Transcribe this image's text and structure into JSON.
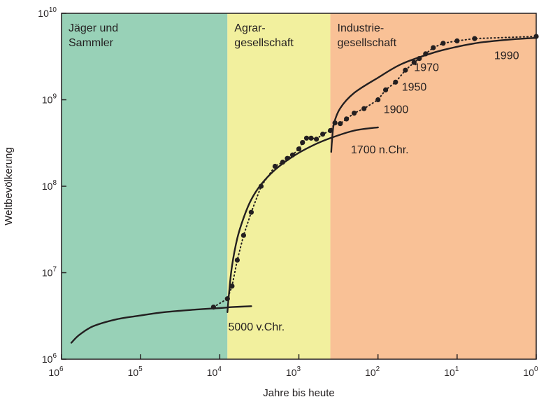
{
  "chart_data": {
    "type": "scatter",
    "x_scale": "log-reversed",
    "y_scale": "log",
    "xlabel": "Jahre bis heute",
    "ylabel": "Weltbevölkerung",
    "xlim": [
      1000000,
      1
    ],
    "ylim": [
      1000000,
      10000000000
    ],
    "x_ticks": [
      {
        "base": "10",
        "exp": "6",
        "value": 1000000
      },
      {
        "base": "10",
        "exp": "5",
        "value": 100000
      },
      {
        "base": "10",
        "exp": "4",
        "value": 10000
      },
      {
        "base": "10",
        "exp": "3",
        "value": 1000
      },
      {
        "base": "10",
        "exp": "2",
        "value": 100
      },
      {
        "base": "10",
        "exp": "1",
        "value": 10
      },
      {
        "base": "10",
        "exp": "0",
        "value": 1
      }
    ],
    "y_ticks": [
      {
        "base": "10",
        "exp": "6",
        "value": 1000000
      },
      {
        "base": "10",
        "exp": "7",
        "value": 10000000
      },
      {
        "base": "10",
        "exp": "8",
        "value": 100000000
      },
      {
        "base": "10",
        "exp": "9",
        "value": 1000000000
      },
      {
        "base": "10",
        "exp": "10",
        "value": 10000000000
      }
    ],
    "eras": [
      {
        "line1": "Jäger und",
        "line2": "Sammler",
        "from": 1000000,
        "to": 8000,
        "color": "#98d1b7"
      },
      {
        "line1": "Agrar-",
        "line2": "gesellschaft",
        "from": 8000,
        "to": 400,
        "color": "#f2f09e"
      },
      {
        "line1": "Industrie-",
        "line2": "gesellschaft",
        "from": 400,
        "to": 1,
        "color": "#f9c196"
      }
    ],
    "series": [
      {
        "marker": "dot",
        "line": "dotted",
        "points": [
          [
            12000,
            4000000
          ],
          [
            8000,
            5000000
          ],
          [
            7000,
            7000000
          ],
          [
            6000,
            14000000
          ],
          [
            5000,
            27000000
          ],
          [
            4000,
            50000000
          ],
          [
            3000,
            100000000
          ],
          [
            2000,
            170000000
          ],
          [
            1600,
            190000000
          ],
          [
            1400,
            210000000
          ],
          [
            1200,
            230000000
          ],
          [
            1000,
            270000000
          ],
          [
            900,
            320000000
          ],
          [
            800,
            360000000
          ],
          [
            700,
            360000000
          ],
          [
            600,
            350000000
          ],
          [
            500,
            400000000
          ],
          [
            400,
            440000000
          ],
          [
            350,
            540000000
          ],
          [
            300,
            530000000
          ],
          [
            250,
            600000000
          ],
          [
            200,
            700000000
          ],
          [
            150,
            790000000
          ],
          [
            100,
            1000000000
          ],
          [
            80,
            1300000000
          ],
          [
            60,
            1600000000
          ],
          [
            45,
            2200000000
          ],
          [
            35,
            2700000000
          ],
          [
            30,
            3000000000
          ],
          [
            25,
            3400000000
          ],
          [
            20,
            4000000000
          ],
          [
            15,
            4500000000
          ],
          [
            10,
            4800000000
          ],
          [
            6,
            5100000000
          ],
          [
            1,
            5400000000
          ]
        ]
      },
      {
        "marker": "none",
        "line": "solid",
        "segments": [
          [
            [
              750000,
              1550000
            ],
            [
              600000,
              1900000
            ],
            [
              400000,
              2400000
            ],
            [
              200000,
              2900000
            ],
            [
              100000,
              3200000
            ],
            [
              50000,
              3500000
            ],
            [
              20000,
              3750000
            ],
            [
              10000,
              3900000
            ],
            [
              7000,
              4000000
            ],
            [
              4000,
              4100000
            ]
          ],
          [
            [
              8000,
              3500000
            ],
            [
              7600,
              6000000
            ],
            [
              7000,
              12000000
            ],
            [
              6000,
              25000000
            ],
            [
              5000,
              43000000
            ],
            [
              4000,
              70000000
            ],
            [
              3000,
              105000000
            ],
            [
              2000,
              155000000
            ],
            [
              1200,
              220000000
            ],
            [
              700,
              290000000
            ],
            [
              400,
              360000000
            ],
            [
              200,
              440000000
            ],
            [
              100,
              480000000
            ]
          ],
          [
            [
              390,
              250000000
            ],
            [
              380,
              350000000
            ],
            [
              360,
              530000000
            ],
            [
              300,
              800000000
            ],
            [
              200,
              1200000000
            ],
            [
              100,
              1800000000
            ],
            [
              50,
              2600000000
            ],
            [
              20,
              3500000000
            ],
            [
              10,
              4100000000
            ],
            [
              5,
              4600000000
            ],
            [
              2,
              5000000000
            ],
            [
              1,
              5200000000
            ]
          ]
        ]
      }
    ],
    "annotations": [
      {
        "text": "5000 v.Chr.",
        "x": 7800,
        "y": 2150000
      },
      {
        "text": "1700 n.Chr.",
        "x": 220,
        "y": 240000000
      },
      {
        "text": "1900",
        "x": 85,
        "y": 700000000
      },
      {
        "text": "1950",
        "x": 50,
        "y": 1270000000
      },
      {
        "text": "1970",
        "x": 35,
        "y": 2150000000
      },
      {
        "text": "1990",
        "x": 3.4,
        "y": 2950000000
      }
    ]
  }
}
